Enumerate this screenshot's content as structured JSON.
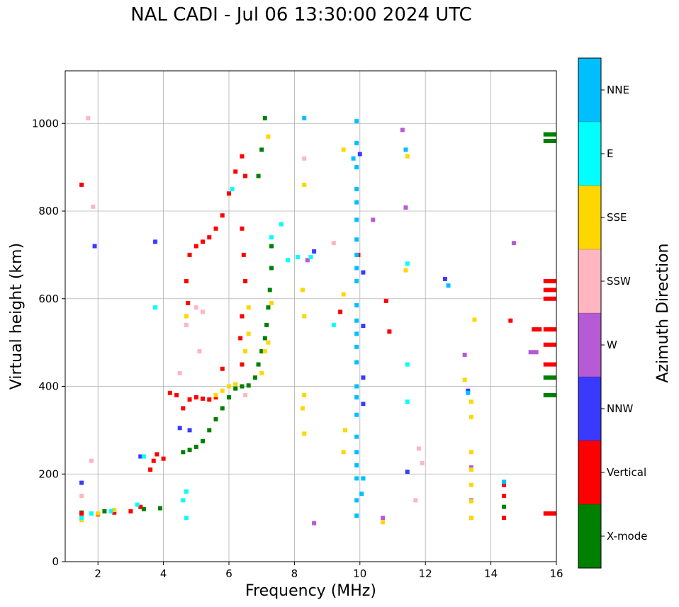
{
  "chart_data": {
    "type": "scatter",
    "title": "NAL CADI - Jul 06 13:30:00 2024 UTC",
    "xlabel": "Frequency (MHz)",
    "ylabel": "Virtual height (km)",
    "xlim": [
      1,
      16
    ],
    "ylim": [
      0,
      1120
    ],
    "xticks": [
      2,
      4,
      6,
      8,
      10,
      12,
      14,
      16
    ],
    "yticks": [
      0,
      200,
      400,
      600,
      800,
      1000
    ],
    "grid": true,
    "colorbar": {
      "label": "Azimuth Direction",
      "categories": [
        {
          "name": "X-mode",
          "color": "#008000"
        },
        {
          "name": "Vertical",
          "color": "#ff0000"
        },
        {
          "name": "NNW",
          "color": "#3a3aff"
        },
        {
          "name": "W",
          "color": "#b65ad6"
        },
        {
          "name": "SSW",
          "color": "#ffb6c1"
        },
        {
          "name": "SSE",
          "color": "#ffd700"
        },
        {
          "name": "E",
          "color": "#00ffff"
        },
        {
          "name": "NNE",
          "color": "#00bfff"
        }
      ]
    },
    "series": [
      {
        "name": "X-mode",
        "points": [
          [
            1.5,
            112
          ],
          [
            2.2,
            115
          ],
          [
            3.4,
            120
          ],
          [
            3.9,
            122
          ],
          [
            4.6,
            250
          ],
          [
            4.8,
            255
          ],
          [
            5.0,
            262
          ],
          [
            5.2,
            275
          ],
          [
            5.4,
            300
          ],
          [
            5.6,
            325
          ],
          [
            5.8,
            350
          ],
          [
            6.0,
            375
          ],
          [
            6.2,
            395
          ],
          [
            6.4,
            400
          ],
          [
            6.6,
            402
          ],
          [
            6.8,
            420
          ],
          [
            6.9,
            450
          ],
          [
            7.0,
            480
          ],
          [
            7.1,
            510
          ],
          [
            7.15,
            540
          ],
          [
            7.2,
            580
          ],
          [
            7.25,
            620
          ],
          [
            7.3,
            670
          ],
          [
            7.3,
            720
          ],
          [
            6.9,
            880
          ],
          [
            7.0,
            940
          ],
          [
            7.1,
            1012
          ],
          [
            15.8,
            960
          ],
          [
            15.8,
            975
          ],
          [
            15.8,
            380
          ],
          [
            15.8,
            420
          ],
          [
            14.4,
            125
          ]
        ]
      },
      {
        "name": "Vertical",
        "points": [
          [
            1.5,
            110
          ],
          [
            2.0,
            108
          ],
          [
            2.5,
            112
          ],
          [
            3.0,
            115
          ],
          [
            3.3,
            125
          ],
          [
            3.6,
            210
          ],
          [
            3.7,
            230
          ],
          [
            3.8,
            245
          ],
          [
            4.0,
            235
          ],
          [
            4.2,
            385
          ],
          [
            4.4,
            380
          ],
          [
            4.6,
            350
          ],
          [
            4.8,
            370
          ],
          [
            5.0,
            375
          ],
          [
            5.2,
            372
          ],
          [
            5.4,
            370
          ],
          [
            5.6,
            375
          ],
          [
            5.8,
            440
          ],
          [
            4.8,
            700
          ],
          [
            5.0,
            720
          ],
          [
            5.2,
            730
          ],
          [
            5.4,
            740
          ],
          [
            5.6,
            760
          ],
          [
            5.8,
            790
          ],
          [
            6.0,
            840
          ],
          [
            6.2,
            890
          ],
          [
            6.4,
            925
          ],
          [
            6.5,
            880
          ],
          [
            6.4,
            760
          ],
          [
            6.45,
            700
          ],
          [
            6.5,
            640
          ],
          [
            6.4,
            560
          ],
          [
            6.35,
            510
          ],
          [
            6.4,
            450
          ],
          [
            4.7,
            640
          ],
          [
            4.75,
            590
          ],
          [
            1.5,
            860
          ],
          [
            9.4,
            570
          ],
          [
            9.95,
            700
          ],
          [
            10.8,
            595
          ],
          [
            10.9,
            525
          ],
          [
            14.6,
            550
          ],
          [
            14.4,
            100
          ],
          [
            14.4,
            150
          ],
          [
            14.4,
            175
          ],
          [
            15.8,
            110
          ],
          [
            15.8,
            450
          ],
          [
            15.8,
            495
          ],
          [
            15.8,
            530
          ],
          [
            15.8,
            620
          ],
          [
            15.8,
            640
          ],
          [
            15.8,
            600
          ],
          [
            15.4,
            530
          ]
        ]
      },
      {
        "name": "NNW",
        "points": [
          [
            1.5,
            180
          ],
          [
            1.9,
            720
          ],
          [
            3.3,
            240
          ],
          [
            3.75,
            730
          ],
          [
            4.5,
            305
          ],
          [
            4.8,
            300
          ],
          [
            8.6,
            708
          ],
          [
            10.0,
            930
          ],
          [
            10.1,
            660
          ],
          [
            10.1,
            538
          ],
          [
            10.1,
            420
          ],
          [
            10.1,
            360
          ],
          [
            11.45,
            205
          ],
          [
            12.6,
            645
          ],
          [
            13.3,
            390
          ]
        ]
      },
      {
        "name": "W",
        "points": [
          [
            8.4,
            688
          ],
          [
            8.6,
            88
          ],
          [
            10.4,
            780
          ],
          [
            10.7,
            100
          ],
          [
            11.3,
            985
          ],
          [
            11.4,
            808
          ],
          [
            13.2,
            472
          ],
          [
            13.4,
            215
          ],
          [
            13.4,
            140
          ],
          [
            13.4,
            100
          ],
          [
            14.7,
            727
          ],
          [
            15.3,
            478
          ]
        ]
      },
      {
        "name": "SSW",
        "points": [
          [
            1.5,
            150
          ],
          [
            1.7,
            1012
          ],
          [
            1.8,
            230
          ],
          [
            1.85,
            810
          ],
          [
            4.5,
            430
          ],
          [
            4.7,
            540
          ],
          [
            5.0,
            580
          ],
          [
            5.2,
            570
          ],
          [
            5.1,
            480
          ],
          [
            6.5,
            380
          ],
          [
            8.3,
            920
          ],
          [
            9.2,
            727
          ],
          [
            11.8,
            258
          ],
          [
            11.9,
            225
          ],
          [
            11.7,
            140
          ]
        ]
      },
      {
        "name": "SSE",
        "points": [
          [
            1.5,
            95
          ],
          [
            2.0,
            110
          ],
          [
            2.5,
            118
          ],
          [
            4.7,
            560
          ],
          [
            5.6,
            380
          ],
          [
            5.8,
            390
          ],
          [
            6.0,
            400
          ],
          [
            6.2,
            405
          ],
          [
            6.6,
            580
          ],
          [
            6.6,
            520
          ],
          [
            6.5,
            480
          ],
          [
            7.0,
            430
          ],
          [
            7.1,
            480
          ],
          [
            7.2,
            500
          ],
          [
            7.3,
            590
          ],
          [
            7.2,
            970
          ],
          [
            8.3,
            860
          ],
          [
            8.25,
            620
          ],
          [
            8.3,
            560
          ],
          [
            8.3,
            380
          ],
          [
            8.25,
            350
          ],
          [
            8.3,
            292
          ],
          [
            9.5,
            940
          ],
          [
            9.5,
            610
          ],
          [
            9.55,
            300
          ],
          [
            9.5,
            250
          ],
          [
            10.7,
            90
          ],
          [
            11.45,
            925
          ],
          [
            11.4,
            665
          ],
          [
            13.2,
            415
          ],
          [
            13.4,
            365
          ],
          [
            13.4,
            330
          ],
          [
            13.4,
            250
          ],
          [
            13.4,
            210
          ],
          [
            13.4,
            175
          ],
          [
            13.4,
            138
          ],
          [
            13.4,
            100
          ],
          [
            13.5,
            552
          ]
        ]
      },
      {
        "name": "E",
        "points": [
          [
            1.5,
            100
          ],
          [
            1.8,
            110
          ],
          [
            2.4,
            115
          ],
          [
            3.2,
            130
          ],
          [
            3.4,
            240
          ],
          [
            3.75,
            580
          ],
          [
            4.6,
            140
          ],
          [
            4.7,
            160
          ],
          [
            4.7,
            100
          ],
          [
            6.1,
            850
          ],
          [
            7.3,
            740
          ],
          [
            7.6,
            770
          ],
          [
            7.8,
            688
          ],
          [
            8.1,
            695
          ],
          [
            8.5,
            695
          ],
          [
            9.2,
            540
          ],
          [
            10.1,
            190
          ],
          [
            11.45,
            680
          ],
          [
            11.45,
            450
          ],
          [
            11.45,
            365
          ],
          [
            14.4,
            182
          ]
        ]
      },
      {
        "name": "NNE",
        "points": [
          [
            8.3,
            1012
          ],
          [
            9.9,
            1005
          ],
          [
            9.9,
            955
          ],
          [
            9.9,
            900
          ],
          [
            9.9,
            850
          ],
          [
            9.9,
            820
          ],
          [
            9.9,
            780
          ],
          [
            9.9,
            735
          ],
          [
            9.9,
            700
          ],
          [
            9.9,
            670
          ],
          [
            9.9,
            640
          ],
          [
            9.9,
            585
          ],
          [
            9.9,
            550
          ],
          [
            9.9,
            520
          ],
          [
            9.9,
            490
          ],
          [
            9.9,
            455
          ],
          [
            9.9,
            400
          ],
          [
            9.9,
            375
          ],
          [
            9.9,
            335
          ],
          [
            9.9,
            285
          ],
          [
            9.9,
            250
          ],
          [
            9.9,
            220
          ],
          [
            9.9,
            190
          ],
          [
            9.9,
            140
          ],
          [
            9.9,
            105
          ],
          [
            9.8,
            920
          ],
          [
            10.05,
            155
          ],
          [
            11.4,
            940
          ],
          [
            12.7,
            630
          ],
          [
            13.3,
            385
          ],
          [
            14.4,
            182
          ],
          [
            10.1,
            190
          ]
        ]
      }
    ]
  }
}
